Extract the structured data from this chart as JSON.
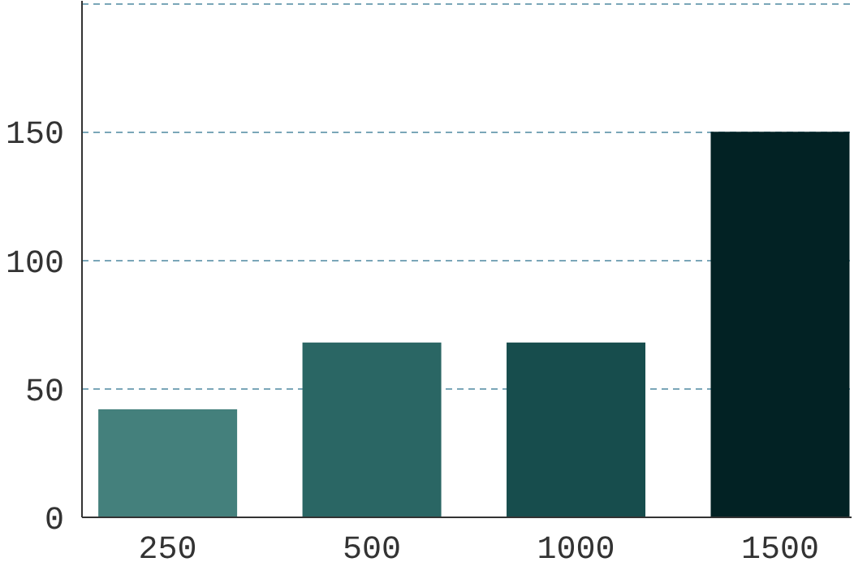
{
  "chart_data": {
    "type": "bar",
    "categories": [
      "250",
      "500",
      "1000",
      "1500"
    ],
    "values": [
      42,
      68,
      68,
      150
    ],
    "colors": [
      "#44807c",
      "#2a6664",
      "#174d4d",
      "#022224"
    ],
    "ylim": [
      0,
      201
    ],
    "yticks": [
      0,
      50,
      100,
      150,
      {
        "value": 200,
        "label": null
      }
    ],
    "grid": "y"
  }
}
